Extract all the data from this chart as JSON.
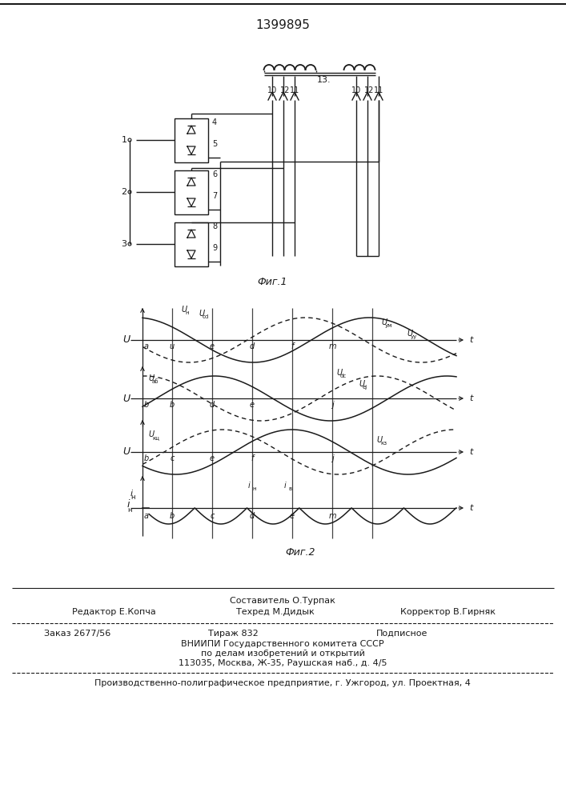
{
  "patent_number": "1399895",
  "fig1_caption": "Фиг.1",
  "fig2_caption": "Фиг.2",
  "footer_comp": "Составитель О.Турпак",
  "footer_editor": "Редактор Е.Копча",
  "footer_techred": "Техред М.Дидык",
  "footer_corrector": "Корректор В.Гирняк",
  "footer_order": "Заказ 2677/56",
  "footer_tirazh": "Тираж 832",
  "footer_podpisnoe": "Подписное",
  "footer_org1": "ВНИИПИ Государственного комитета СССР",
  "footer_org2": "по делам изобретений и открытий",
  "footer_org3": "113035, Москва, Ж-35, Раушская наб., д. 4/5",
  "footer_bottom": "Производственно-полиграфическое предприятие, г. Ужгород, ул. Проектная, 4",
  "bg_color": "#ffffff",
  "line_color": "#1a1a1a"
}
